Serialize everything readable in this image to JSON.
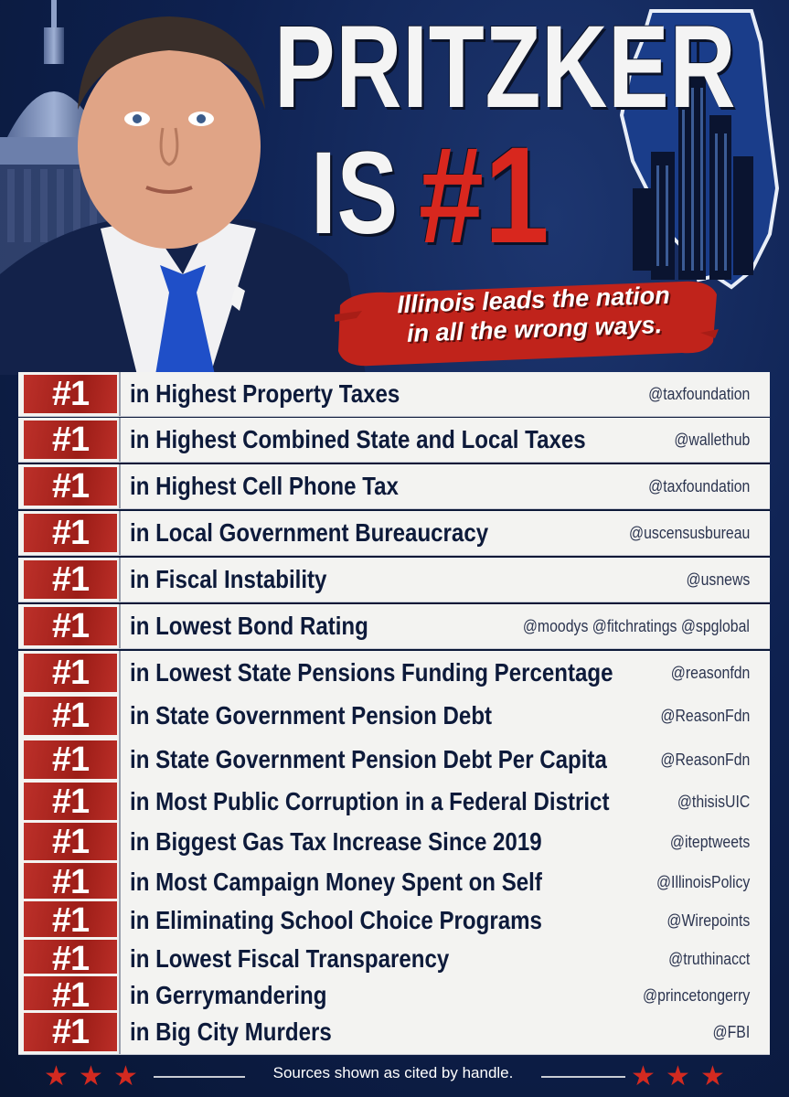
{
  "headline": {
    "line1": "PRITZKER",
    "line2_prefix": "IS",
    "line2_rank": "#1"
  },
  "subtitle": {
    "line1": "Illinois leads the nation",
    "line2": "in all the wrong ways."
  },
  "colors": {
    "rank_red": "#b8231c",
    "navy": "#0c1a3c",
    "row_bg": "#f3f3f1"
  },
  "rankings": [
    {
      "rank": "#1",
      "text": "in Highest Property Taxes",
      "source": "@taxfoundation"
    },
    {
      "rank": "#1",
      "text": "in Highest Combined State and Local Taxes",
      "source": "@wallethub"
    },
    {
      "rank": "#1",
      "text": "in Highest Cell Phone Tax",
      "source": "@taxfoundation"
    },
    {
      "rank": "#1",
      "text": "in Local Government Bureaucracy",
      "source": "@uscensusbureau"
    },
    {
      "rank": "#1",
      "text": "in Fiscal Instability",
      "source": "@usnews"
    },
    {
      "rank": "#1",
      "text": "in Lowest Bond Rating",
      "source": "@moodys  @fitchratings  @spglobal"
    },
    {
      "rank": "#1",
      "text": "in Lowest State Pensions Funding Percentage",
      "source": "@reasonfdn"
    },
    {
      "rank": "#1",
      "text": "in State Government Pension Debt",
      "source": "@ReasonFdn"
    },
    {
      "rank": "#1",
      "text": "in State Government Pension Debt Per Capita",
      "source": "@ReasonFdn"
    },
    {
      "rank": "#1",
      "text": "in Most Public Corruption in a Federal District",
      "source": "@thisisUIC"
    },
    {
      "rank": "#1",
      "text": "in Biggest Gas Tax Increase Since 2019",
      "source": "@iteptweets"
    },
    {
      "rank": "#1",
      "text": "in Most Campaign Money Spent on Self",
      "source": "@IllinoisPolicy"
    },
    {
      "rank": "#1",
      "text": "in Eliminating School Choice Programs",
      "source": "@Wirepoints"
    },
    {
      "rank": "#1",
      "text": "in Lowest Fiscal Transparency",
      "source": "@truthinacct"
    },
    {
      "rank": "#1",
      "text": "in Gerrymandering",
      "source": "@princetongerry"
    },
    {
      "rank": "#1",
      "text": "in Big City Murders",
      "source": "@FBI"
    }
  ],
  "footer": {
    "text": "Sources shown as cited by handle.",
    "star_icon": "star-icon"
  }
}
